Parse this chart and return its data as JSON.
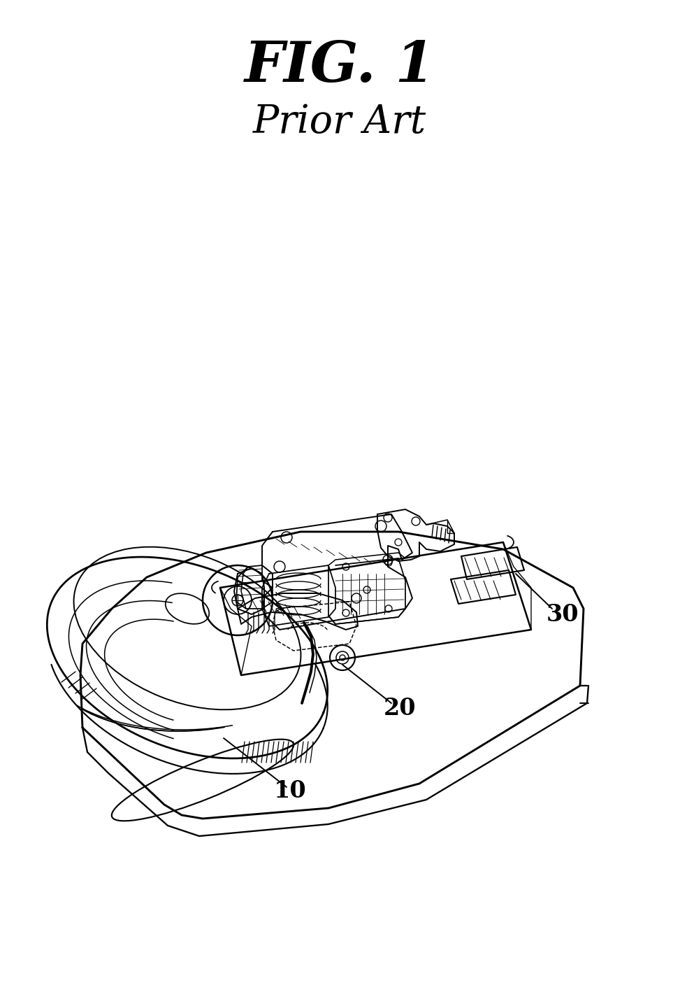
{
  "title": "FIG. 1",
  "subtitle": "Prior Art",
  "title_fontsize": 58,
  "subtitle_fontsize": 40,
  "bg_color": "#ffffff",
  "line_color": "#000000",
  "lw": 1.4,
  "label_10": "10",
  "label_20": "20",
  "label_30": "30",
  "label_fontsize": 24
}
